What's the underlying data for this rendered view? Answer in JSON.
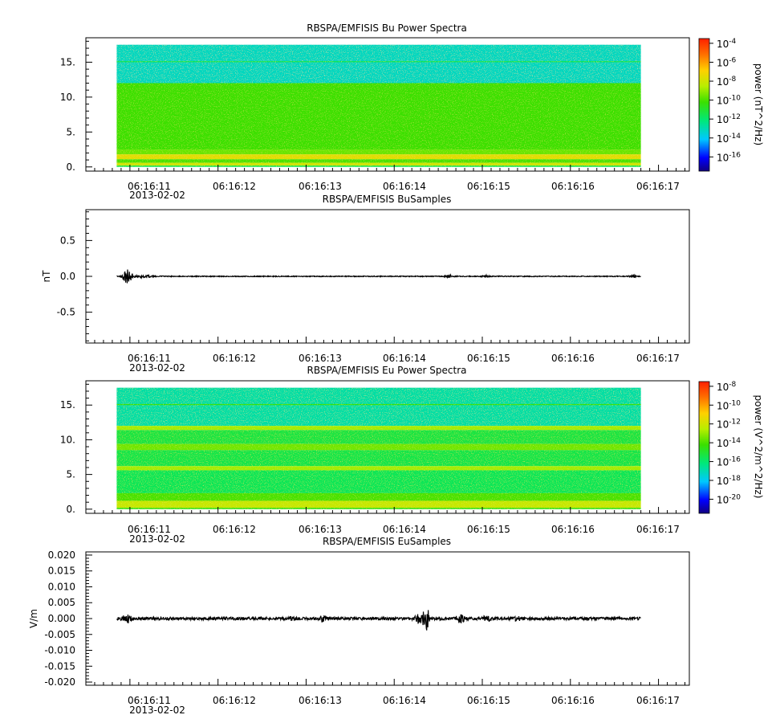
{
  "chart_data": [
    {
      "type": "heatmap",
      "title": "RBSPA/EMFISIS  Bu Power Spectra",
      "xlabel": "",
      "ylabel": "",
      "x_time_start": "06:16:10.85",
      "x_time_end": "06:16:16.80",
      "x_ticks": [
        "06:16:11",
        "06:16:12",
        "06:16:13",
        "06:16:14",
        "06:16:15",
        "06:16:16",
        "06:16:17"
      ],
      "x_date_label": "2013-02-02",
      "xlim": [
        "06:16:10.5",
        "06:16:17.35"
      ],
      "y_ticks": [
        "0.",
        "5.",
        "10.",
        "15."
      ],
      "ylim": [
        -0.6,
        18.5
      ],
      "data_ylim": [
        0,
        17.5
      ],
      "colorbar": {
        "label": "power (nT^2/Hz)",
        "log_scale": true,
        "range_exp": [
          -17.5,
          -3.5
        ],
        "ticks": [
          {
            "base": "10",
            "exp": "-4"
          },
          {
            "base": "10",
            "exp": "-6"
          },
          {
            "base": "10",
            "exp": "-8"
          },
          {
            "base": "10",
            "exp": "-10"
          },
          {
            "base": "10",
            "exp": "-12"
          },
          {
            "base": "10",
            "exp": "-14"
          },
          {
            "base": "10",
            "exp": "-16"
          }
        ]
      },
      "bands": [
        {
          "y_range": [
            12.0,
            17.5
          ],
          "power_exp": -13.2
        },
        {
          "y_range": [
            15.0,
            15.15
          ],
          "power_exp": -11.5
        },
        {
          "y_range": [
            2.5,
            12.0
          ],
          "power_exp": -10.2
        },
        {
          "y_range": [
            1.8,
            2.5
          ],
          "power_exp": -9.6
        },
        {
          "y_range": [
            1.1,
            1.8
          ],
          "power_exp": -7.6
        },
        {
          "y_range": [
            0.6,
            1.1
          ],
          "power_exp": -10.0
        },
        {
          "y_range": [
            0.2,
            0.6
          ],
          "power_exp": -8.0
        },
        {
          "y_range": [
            0.0,
            0.2
          ],
          "power_exp": -11.5
        }
      ]
    },
    {
      "type": "line",
      "title": "RBSPA/EMFISIS  BuSamples",
      "xlabel": "",
      "ylabel": "nT",
      "x_time_start": "06:16:10.85",
      "x_time_end": "06:16:16.80",
      "x_ticks": [
        "06:16:11",
        "06:16:12",
        "06:16:13",
        "06:16:14",
        "06:16:15",
        "06:16:16",
        "06:16:17"
      ],
      "x_date_label": "2013-02-02",
      "xlim": [
        "06:16:10.5",
        "06:16:17.35"
      ],
      "y_ticks": [
        "0.5",
        "0.0",
        "-0.5"
      ],
      "ylim": [
        -0.93,
        0.93
      ],
      "bursts": [
        {
          "t": 0.12,
          "amp": 0.11,
          "width": 0.05
        },
        {
          "t": 0.3,
          "amp": 0.02,
          "width": 0.08
        },
        {
          "t": 3.78,
          "amp": 0.018,
          "width": 0.04
        },
        {
          "t": 4.2,
          "amp": 0.014,
          "width": 0.05
        },
        {
          "t": 5.85,
          "amp": 0.013,
          "width": 0.04
        }
      ],
      "noise_amp": 0.006
    },
    {
      "type": "heatmap",
      "title": "RBSPA/EMFISIS  Eu Power Spectra",
      "xlabel": "",
      "ylabel": "",
      "x_time_start": "06:16:10.85",
      "x_time_end": "06:16:16.80",
      "x_ticks": [
        "06:16:11",
        "06:16:12",
        "06:16:13",
        "06:16:14",
        "06:16:15",
        "06:16:16",
        "06:16:17"
      ],
      "x_date_label": "2013-02-02",
      "xlim": [
        "06:16:10.5",
        "06:16:17.35"
      ],
      "y_ticks": [
        "0.",
        "5.",
        "10.",
        "15."
      ],
      "ylim": [
        -0.6,
        18.5
      ],
      "data_ylim": [
        0,
        17.5
      ],
      "colorbar": {
        "label": "power (V^2/m^2/Hz)",
        "log_scale": true,
        "range_exp": [
          -21.5,
          -7.5
        ],
        "ticks": [
          {
            "base": "10",
            "exp": "-8"
          },
          {
            "base": "10",
            "exp": "-10"
          },
          {
            "base": "10",
            "exp": "-12"
          },
          {
            "base": "10",
            "exp": "-14"
          },
          {
            "base": "10",
            "exp": "-16"
          },
          {
            "base": "10",
            "exp": "-18"
          },
          {
            "base": "10",
            "exp": "-20"
          }
        ]
      },
      "bands": [
        {
          "y_range": [
            12.0,
            17.5
          ],
          "power_exp": -16.8
        },
        {
          "y_range": [
            15.0,
            15.15
          ],
          "power_exp": -14.5
        },
        {
          "y_range": [
            11.4,
            12.0
          ],
          "power_exp": -12.8
        },
        {
          "y_range": [
            9.4,
            11.4
          ],
          "power_exp": -15.3
        },
        {
          "y_range": [
            8.5,
            9.4
          ],
          "power_exp": -13.5
        },
        {
          "y_range": [
            6.2,
            8.5
          ],
          "power_exp": -15.4
        },
        {
          "y_range": [
            5.6,
            6.2
          ],
          "power_exp": -12.8
        },
        {
          "y_range": [
            2.3,
            5.6
          ],
          "power_exp": -15.6
        },
        {
          "y_range": [
            1.2,
            2.3
          ],
          "power_exp": -14.0
        },
        {
          "y_range": [
            0.2,
            1.2
          ],
          "power_exp": -12.2
        },
        {
          "y_range": [
            0.0,
            0.2
          ],
          "power_exp": -14.5
        }
      ]
    },
    {
      "type": "line",
      "title": "RBSPA/EMFISIS  EuSamples",
      "xlabel": "",
      "ylabel": "V/m",
      "x_time_start": "06:16:10.85",
      "x_time_end": "06:16:16.80",
      "x_ticks": [
        "06:16:11",
        "06:16:12",
        "06:16:13",
        "06:16:14",
        "06:16:15",
        "06:16:16",
        "06:16:17"
      ],
      "x_date_label": "2013-02-02",
      "xlim": [
        "06:16:10.5",
        "06:16:17.35"
      ],
      "y_ticks": [
        "0.020",
        "0.015",
        "0.010",
        "0.005",
        "0.000",
        "-0.005",
        "-0.010",
        "-0.015",
        "-0.020"
      ],
      "ylim": [
        -0.021,
        0.021
      ],
      "bursts": [
        {
          "t": 0.12,
          "amp": 0.0012,
          "width": 0.05
        },
        {
          "t": 2.0,
          "amp": 0.0006,
          "width": 0.03
        },
        {
          "t": 2.33,
          "amp": 0.0008,
          "width": 0.04
        },
        {
          "t": 3.45,
          "amp": 0.0019,
          "width": 0.05
        },
        {
          "t": 3.52,
          "amp": 0.003,
          "width": 0.03
        },
        {
          "t": 3.9,
          "amp": 0.0011,
          "width": 0.05
        },
        {
          "t": 4.2,
          "amp": 0.0007,
          "width": 0.04
        },
        {
          "t": 4.55,
          "amp": 0.0005,
          "width": 0.05
        }
      ],
      "noise_amp": 0.00045
    }
  ]
}
